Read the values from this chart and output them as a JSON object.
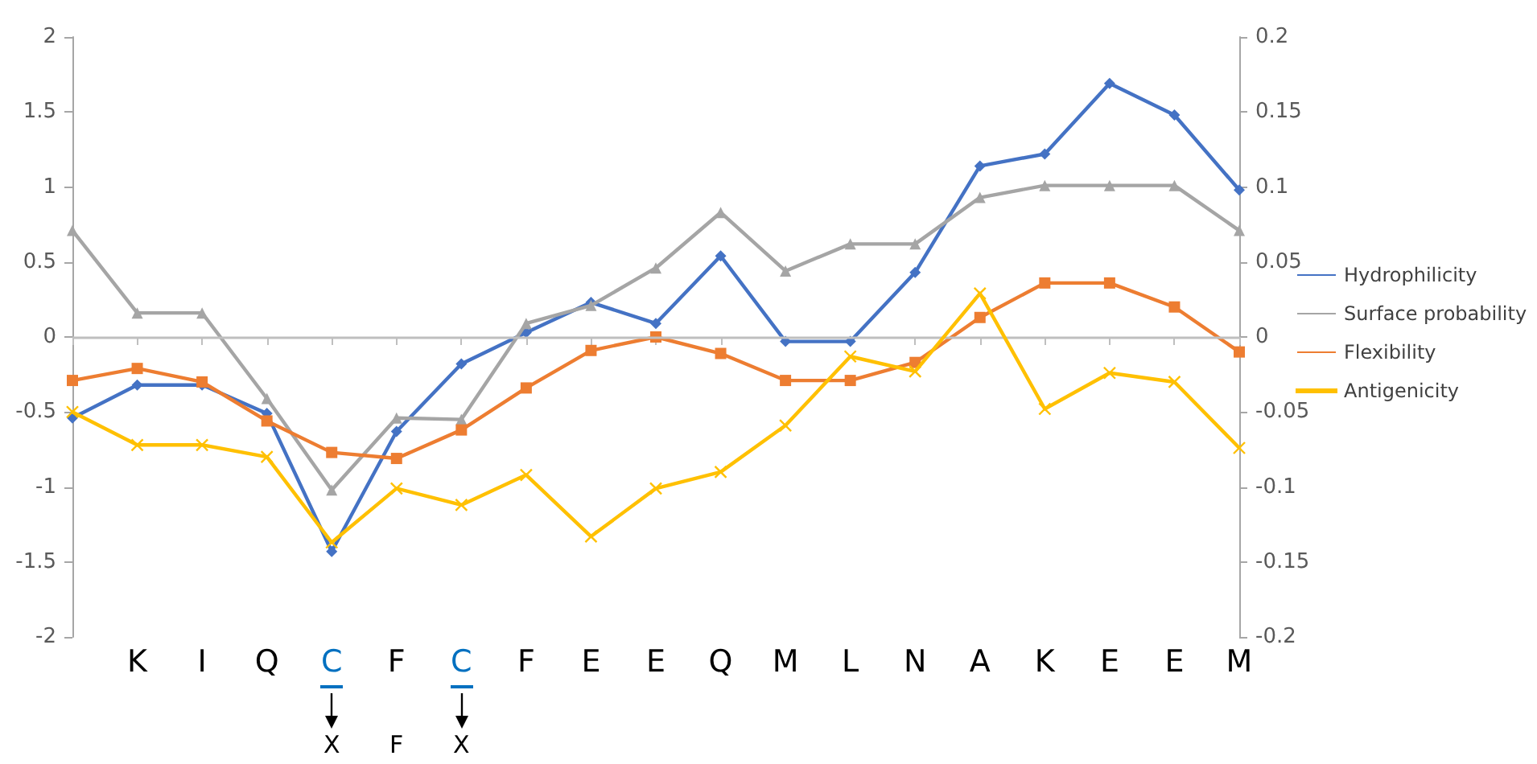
{
  "chart_data": {
    "type": "line",
    "categories": [
      null,
      "K",
      "I",
      "Q",
      "C",
      "F",
      "C",
      "F",
      "E",
      "E",
      "Q",
      "M",
      "L",
      "N",
      "A",
      "K",
      "E",
      "E",
      "M"
    ],
    "series": [
      {
        "name": "Hydrophilicity",
        "color": "#4472c4",
        "marker": "diamond",
        "values": [
          -0.54,
          -0.32,
          -0.32,
          -0.51,
          -1.43,
          -0.63,
          -0.18,
          0.03,
          0.23,
          0.09,
          0.54,
          -0.03,
          -0.03,
          0.43,
          1.14,
          1.22,
          1.69,
          1.48,
          0.98
        ]
      },
      {
        "name": "Surface probability",
        "color": "#a5a5a5",
        "marker": "triangle",
        "values": [
          0.71,
          0.16,
          0.16,
          -0.41,
          -1.02,
          -0.54,
          -0.55,
          0.09,
          0.21,
          0.46,
          0.83,
          0.44,
          0.62,
          0.62,
          0.93,
          1.01,
          1.01,
          1.01,
          0.71
        ]
      },
      {
        "name": "Flexibility",
        "color": "#ed7d31",
        "marker": "square",
        "values": [
          -0.29,
          -0.21,
          -0.3,
          -0.56,
          -0.77,
          -0.81,
          -0.62,
          -0.34,
          -0.09,
          0.0,
          -0.11,
          -0.29,
          -0.29,
          -0.17,
          0.13,
          0.36,
          0.36,
          0.2,
          -0.1
        ]
      },
      {
        "name": "Antigenicity",
        "color": "#ffc000",
        "marker": "cross",
        "values": [
          -0.5,
          -0.72,
          -0.72,
          -0.8,
          -1.37,
          -1.01,
          -1.12,
          -0.92,
          -1.33,
          -1.01,
          -0.9,
          -0.59,
          -0.13,
          -0.23,
          0.29,
          -0.48,
          -0.24,
          -0.3,
          -0.74
        ]
      }
    ],
    "ylim": [
      -2,
      2
    ],
    "yticks": [
      -2,
      -1.5,
      -1,
      -0.5,
      0,
      0.5,
      1,
      1.5,
      2
    ],
    "y2lim": [
      -0.2,
      0.2
    ],
    "y2ticks": [
      -0.2,
      -0.15,
      -0.1,
      -0.05,
      0,
      0.05,
      0.1,
      0.15,
      0.2
    ],
    "annotations": [
      "X",
      "F",
      "X"
    ],
    "ref_lines": [
      {
        "axis": "y",
        "value": 0,
        "color": "#bfbfbf"
      }
    ],
    "grid": false,
    "legend": "right",
    "line_style": "solid"
  }
}
